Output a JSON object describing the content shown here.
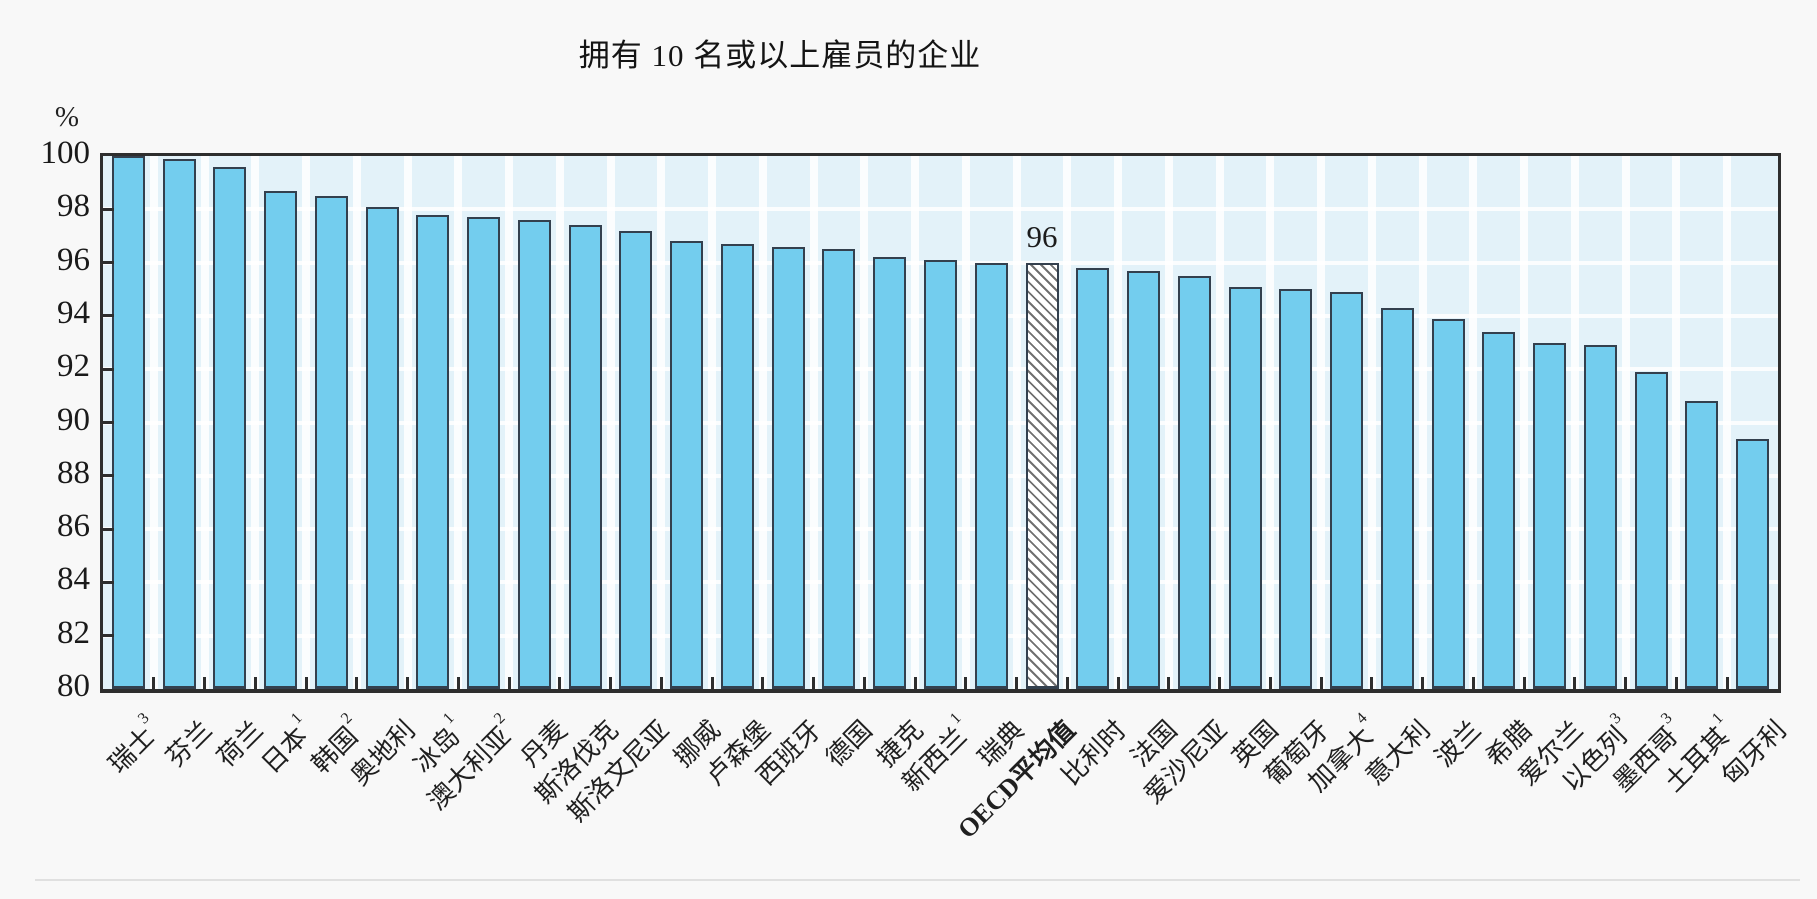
{
  "title": "拥有 10 名或以上雇员的企业",
  "chart_data": {
    "type": "bar",
    "title": "拥有 10 名或以上雇员的企业",
    "ylabel": "%",
    "xlabel": "",
    "ylim": [
      80,
      100
    ],
    "ytick_step": 2,
    "yticks": [
      "100",
      "98",
      "96",
      "94",
      "92",
      "90",
      "88",
      "86",
      "84",
      "82",
      "80"
    ],
    "grid": "white horizontal and vertical gridlines on pale blue plot background",
    "legend_position": "none",
    "categories": [
      {
        "label": "瑞士",
        "sup": "3"
      },
      {
        "label": "芬兰",
        "sup": ""
      },
      {
        "label": "荷兰",
        "sup": ""
      },
      {
        "label": "日本",
        "sup": "1"
      },
      {
        "label": "韩国",
        "sup": "2"
      },
      {
        "label": "奥地利",
        "sup": ""
      },
      {
        "label": "冰岛",
        "sup": "1"
      },
      {
        "label": "澳大利亚",
        "sup": "2"
      },
      {
        "label": "丹麦",
        "sup": ""
      },
      {
        "label": "斯洛伐克",
        "sup": ""
      },
      {
        "label": "斯洛文尼亚",
        "sup": ""
      },
      {
        "label": "挪威",
        "sup": ""
      },
      {
        "label": "卢森堡",
        "sup": ""
      },
      {
        "label": "西班牙",
        "sup": ""
      },
      {
        "label": "德国",
        "sup": ""
      },
      {
        "label": "捷克",
        "sup": ""
      },
      {
        "label": "新西兰",
        "sup": "1"
      },
      {
        "label": "瑞典",
        "sup": ""
      },
      {
        "label": "OECD平均值",
        "sup": "",
        "bold": true
      },
      {
        "label": "比利时",
        "sup": ""
      },
      {
        "label": "法国",
        "sup": ""
      },
      {
        "label": "爱沙尼亚",
        "sup": ""
      },
      {
        "label": "英国",
        "sup": ""
      },
      {
        "label": "葡萄牙",
        "sup": ""
      },
      {
        "label": "加拿大",
        "sup": "4"
      },
      {
        "label": "意大利",
        "sup": ""
      },
      {
        "label": "波兰",
        "sup": ""
      },
      {
        "label": "希腊",
        "sup": ""
      },
      {
        "label": "爱尔兰",
        "sup": ""
      },
      {
        "label": "以色列",
        "sup": "3"
      },
      {
        "label": "墨西哥",
        "sup": "3"
      },
      {
        "label": "土耳其",
        "sup": "1"
      },
      {
        "label": "匈牙利",
        "sup": ""
      }
    ],
    "values": [
      100,
      99.9,
      99.6,
      98.7,
      98.5,
      98.1,
      97.8,
      97.7,
      97.6,
      97.4,
      97.2,
      96.8,
      96.7,
      96.6,
      96.5,
      96.2,
      96.1,
      96.0,
      96.0,
      95.8,
      95.7,
      95.5,
      95.1,
      95.0,
      94.9,
      94.3,
      93.9,
      93.4,
      93.0,
      92.9,
      91.9,
      90.8,
      89.4
    ],
    "highlight_bar": {
      "category": "OECD平均值",
      "index": 18,
      "pattern": "diagonal-hatch",
      "data_label": "96"
    },
    "colors": {
      "bar_fill": "#73CDEE",
      "bar_border": "#33404E",
      "plot_background": "#E3F2F9",
      "gridline": "#FFFFFF",
      "frame": "#2E2E2E",
      "hatch_fill": "#FFFFFF",
      "hatch_line": "#707070",
      "text": "#1C1C1C",
      "page_background": "#F8F8F8"
    }
  }
}
